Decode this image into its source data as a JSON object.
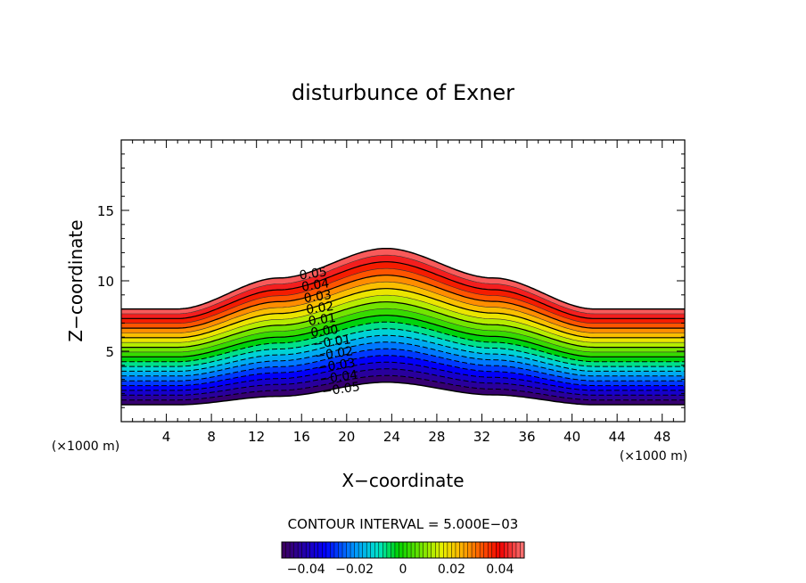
{
  "chart_data": {
    "type": "contour",
    "title": "disturbunce of Exner",
    "xlabel": "X−coordinate",
    "ylabel": "Z−coordinate",
    "x_unit_left": "(×1000 m)",
    "x_unit_right": "(×1000 m)",
    "xlim": [
      0,
      50
    ],
    "ylim": [
      0,
      20
    ],
    "x_ticks": [
      4,
      8,
      12,
      16,
      20,
      24,
      28,
      32,
      36,
      40,
      44,
      48
    ],
    "y_ticks": [
      5,
      10,
      15
    ],
    "surface": {
      "description": "field region between a terrain-following bottom and top boundary",
      "bottom_boundary_z": [
        1.2,
        1.2,
        1.8,
        2.8,
        1.9,
        1.2,
        1.2
      ],
      "top_boundary_z": [
        8.0,
        8.0,
        10.2,
        12.3,
        10.2,
        8.0,
        8.0
      ],
      "boundary_x": [
        0,
        5,
        14,
        23.5,
        33,
        42,
        50
      ]
    },
    "contour_interval": "CONTOUR INTERVAL = 5.000E−03",
    "contour_labels": [
      "0.05",
      "0.04",
      "0.03",
      "0.02",
      "0.01",
      "0.00",
      "−0.01",
      "−0.02",
      "−0.03",
      "−0.04",
      "−0.05"
    ],
    "value_range": [
      -0.05,
      0.05
    ],
    "colorbar": {
      "ticks": [
        "−0.04",
        "−0.02",
        "0",
        "0.02",
        "0.04"
      ],
      "tick_values": [
        -0.04,
        -0.02,
        0,
        0.02,
        0.04
      ],
      "range": [
        -0.05,
        0.05
      ]
    }
  }
}
